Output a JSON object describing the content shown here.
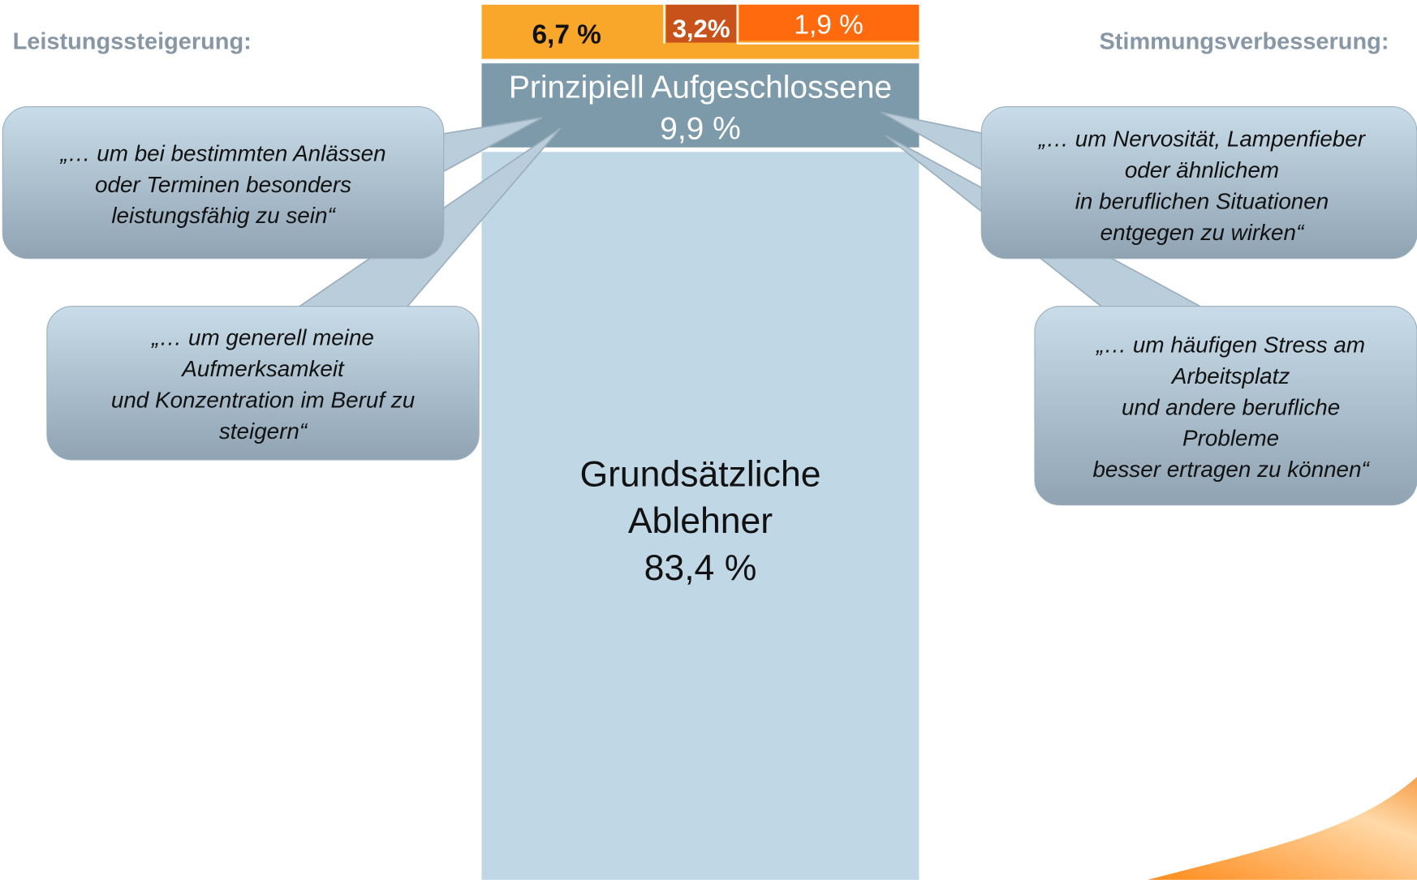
{
  "header": {
    "left_title": "Leistungssteigerung:",
    "right_title": "Stimmungsverbesserung:"
  },
  "segments": [
    "6,7 %",
    "3,2%",
    "1,9 %"
  ],
  "aufgeschlossene": {
    "name": "Prinzipiell Aufgeschlossene",
    "value": "9,9 %"
  },
  "ablehner": {
    "lines": [
      "Grundsätzliche",
      "Ablehner",
      "83,4 %"
    ]
  },
  "callouts": [
    {
      "lines": [
        "„… um bei bestimmten Anlässen",
        "oder Terminen besonders",
        "leistungsfähig zu sein“"
      ]
    },
    {
      "lines": [
        "„… um generell meine",
        "Aufmerksamkeit",
        "und Konzentration im Beruf zu",
        "steigern“"
      ]
    },
    {
      "lines": [
        "„… um Nervosität, Lampenfieber",
        "oder ähnlichem",
        "in beruflichen Situationen",
        "entgegen zu wirken“"
      ]
    },
    {
      "lines": [
        "„… um häufigen Stress am",
        "Arbeitsplatz",
        "und andere berufliche",
        "Probleme",
        "besser ertragen zu können“"
      ]
    }
  ]
}
